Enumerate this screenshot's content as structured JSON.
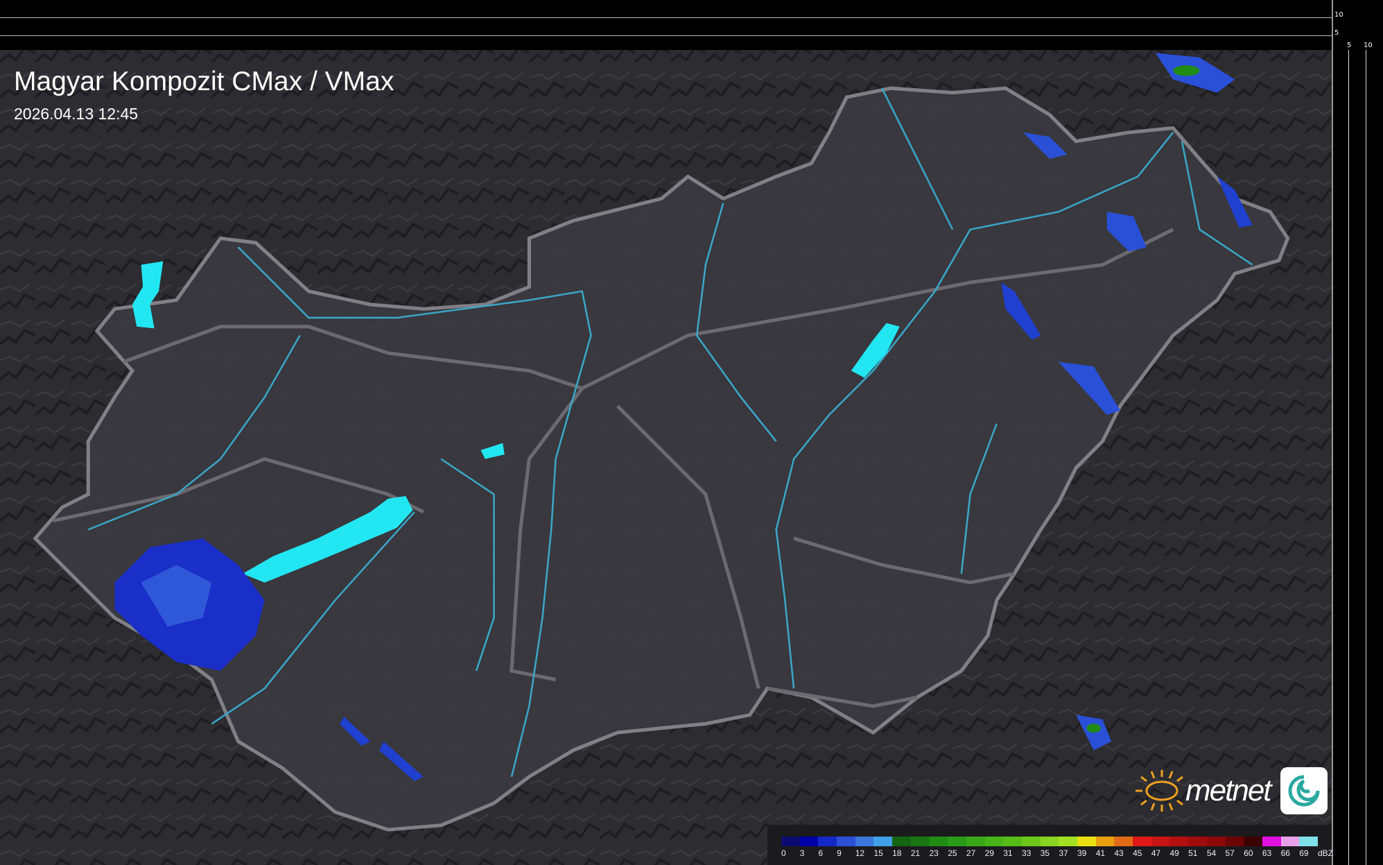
{
  "header": {
    "title": "Magyar Kompozit CMax / VMax",
    "timestamp": "2026.04.13 12:45"
  },
  "profile_axes": {
    "top_ticks": [
      "10",
      "5"
    ],
    "right_ticks": [
      "5",
      "10"
    ]
  },
  "legend": {
    "unit": "dBZ",
    "labels": [
      "0",
      "3",
      "6",
      "9",
      "12",
      "15",
      "18",
      "21",
      "23",
      "25",
      "27",
      "29",
      "31",
      "33",
      "35",
      "37",
      "39",
      "41",
      "43",
      "45",
      "47",
      "49",
      "51",
      "54",
      "57",
      "60",
      "63",
      "66",
      "69"
    ],
    "colors": [
      "#0b0b70",
      "#0000a8",
      "#1428c8",
      "#2c50d8",
      "#3a78dc",
      "#40a0e8",
      "#146414",
      "#1a7814",
      "#208c14",
      "#289c18",
      "#38a818",
      "#48b418",
      "#58bc18",
      "#6cc818",
      "#88d420",
      "#a0e020",
      "#e8e010",
      "#e8a010",
      "#e06c18",
      "#e01818",
      "#c81414",
      "#b41010",
      "#a00c0c",
      "#8c0808",
      "#6c0404",
      "#3c0000",
      "#e010e0",
      "#e8a0e8",
      "#80e0e8"
    ]
  },
  "logo": {
    "text": "metnet"
  },
  "colors": {
    "background": "#2e2e33",
    "country": "#3a3a40",
    "border": "#8a8a90",
    "rivers": "#3aa6c8",
    "lakes": "#22e6f2",
    "radar_weak": "#2040d0"
  }
}
